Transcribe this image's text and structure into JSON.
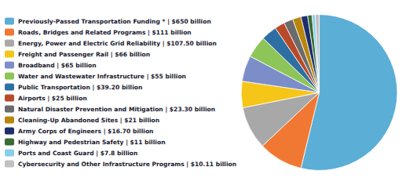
{
  "chart_data": {
    "type": "pie",
    "categories": [
      "Previously-Passed Transportation Funding * | $650 billion",
      "Roads, Bridges and Related Programs | $111 billion",
      "Energy, Power and Electric Grid Reliability | $107.50 billion",
      "Freight and Passenger Rail | $66 billion",
      "Broadband | $65 billion",
      "Water and Wastewater Infrastructure | $55 billion",
      "Public Transportation | $39.20 billion",
      "Airports | $25 billion",
      "Natural Disaster Prevention and Mitigation | $23.30 billion",
      "Cleaning-Up Abandoned Sites | $21 billion",
      "Army Corps of Engineers | $16.70 billion",
      "Highway and Pedestrian Safety | $11 billion",
      "Ports and Coast Guard | $7.8 billion",
      "Cybersecurity and Other Infrastructure Programs | $10.11 billion"
    ],
    "values": [
      650,
      111,
      107.5,
      66,
      65,
      55,
      39.2,
      25,
      23.3,
      21,
      16.7,
      11,
      7.8,
      10.11
    ],
    "colors": [
      "#5BAED6",
      "#F07832",
      "#A8A8A8",
      "#F5C518",
      "#7B8EC8",
      "#8DC558",
      "#2E6FA3",
      "#B84A2A",
      "#6B6B6B",
      "#B8860B",
      "#1C2F6B",
      "#3A6B35",
      "#87CEEB",
      "#C0C0C0"
    ],
    "legend": "left"
  }
}
